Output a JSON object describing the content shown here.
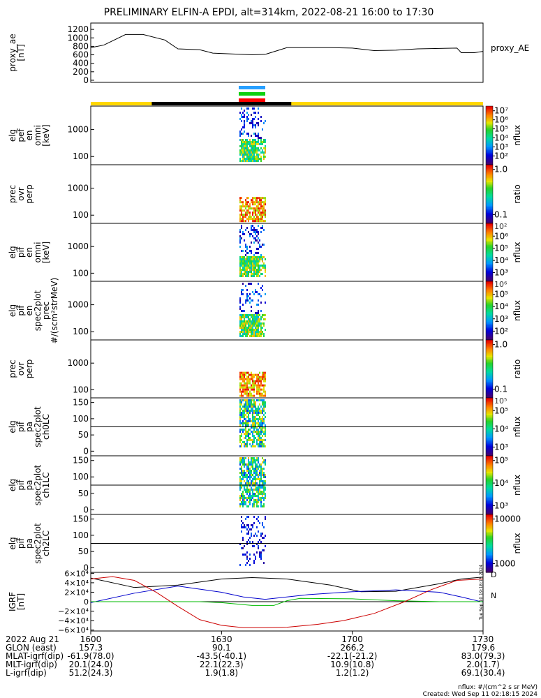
{
  "title": "PRELIMINARY ELFIN-A EPDI, alt=314km, 2022-08-21 16:00 to 17:30",
  "credit": {
    "units": "nflux: #/(cm^2 s sr MeV)",
    "created": "Created: Wed Sep 11 02:18:15 2024",
    "stamp": "Tue Sep 10 19:18:15 2024"
  },
  "orbit_bars": {
    "colors": [
      "#28a0ff",
      "#10d010",
      "#ff0000"
    ],
    "track_colors": {
      "day": "#ffd700",
      "night": "#000000"
    },
    "night_range_min": [
      14,
      46
    ]
  },
  "chart_data": [
    {
      "type": "line",
      "ylabel": "proxy_ae [nT]",
      "legend": "proxy_AE",
      "ylim": [
        -50,
        1350
      ],
      "yticks": [
        "1200",
        "1000",
        "800",
        "600",
        "400",
        "200",
        "0"
      ],
      "x_minutes": [
        0,
        3,
        8,
        12,
        17,
        20,
        25,
        28,
        37,
        40,
        45,
        52,
        55,
        60,
        65,
        70,
        75,
        80,
        84,
        85,
        88,
        90
      ],
      "values": [
        770,
        830,
        1080,
        1080,
        950,
        740,
        720,
        640,
        600,
        610,
        770,
        770,
        770,
        760,
        700,
        710,
        740,
        750,
        760,
        650,
        650,
        680
      ],
      "color": "#000000"
    },
    {
      "type": "heatmap",
      "ylabel": [
        "elg",
        "pef",
        "en",
        "omni",
        "[keV]"
      ],
      "yticks": [
        "1000",
        "100"
      ],
      "colorbar_label": "nflux",
      "colorbar_ticks": [
        "10⁷",
        "10⁶",
        "10⁵",
        "10⁴",
        "10³",
        "10²"
      ],
      "colorbar_partial": [],
      "kind": "energy"
    },
    {
      "type": "heatmap",
      "ylabel": [
        "prec",
        "ovr",
        "perp"
      ],
      "yticks": [
        "1000",
        "100"
      ],
      "colorbar_label": "ratio",
      "colorbar_ticks": [
        "1.0",
        "0.1"
      ],
      "colorbar_partial": [],
      "kind": "ratio"
    },
    {
      "type": "heatmap",
      "ylabel": [
        "elg",
        "pif",
        "en",
        "omni",
        "[keV]"
      ],
      "yticks": [
        "1000",
        "100"
      ],
      "colorbar_label": "nflux",
      "colorbar_ticks": [
        "10⁶",
        "10⁵",
        "10⁴",
        "10³"
      ],
      "colorbar_partial": [
        "10²"
      ],
      "kind": "energy"
    },
    {
      "type": "heatmap",
      "ylabel": [
        "elg",
        "pif",
        "en",
        "spec2plot",
        "prec",
        "#/(scm²strMeV)"
      ],
      "yticks": [
        "1000",
        "100"
      ],
      "colorbar_label": "nflux",
      "colorbar_ticks": [
        "10⁵",
        "10⁴",
        "10³",
        "10²"
      ],
      "colorbar_partial": [
        "10⁶"
      ],
      "kind": "energy"
    },
    {
      "type": "heatmap",
      "ylabel": [
        "prec",
        "ovr",
        "perp"
      ],
      "yticks": [
        "1000",
        "100"
      ],
      "colorbar_label": "ratio",
      "colorbar_ticks": [
        "1.0",
        "0.1"
      ],
      "colorbar_partial": [],
      "kind": "ratio"
    },
    {
      "type": "heatmap",
      "ylabel": [
        "elg",
        "pif",
        "pa",
        "spec2plot",
        "ch0LC"
      ],
      "yticks": [
        "150",
        "100",
        "50",
        "0"
      ],
      "colorbar_label": "nflux",
      "colorbar_ticks": [
        "10⁵",
        "10⁴",
        "10³"
      ],
      "colorbar_partial": [
        "10⁵"
      ],
      "kind": "pitch"
    },
    {
      "type": "heatmap",
      "ylabel": [
        "elg",
        "pif",
        "pa",
        "spec2plot",
        "ch1LC"
      ],
      "yticks": [
        "150",
        "100",
        "50",
        "0"
      ],
      "colorbar_label": "nflux",
      "colorbar_ticks": [
        "10⁵",
        "10⁴",
        "10³"
      ],
      "colorbar_partial": [],
      "kind": "pitch"
    },
    {
      "type": "heatmap",
      "ylabel": [
        "elg",
        "pif",
        "pa",
        "spec2plot",
        "ch2LC"
      ],
      "yticks": [
        "150",
        "100",
        "50",
        "0"
      ],
      "colorbar_label": "nflux",
      "colorbar_ticks": [
        "10000",
        "1000"
      ],
      "colorbar_partial": [],
      "kind": "sparse"
    },
    {
      "type": "line",
      "ylabel": "IGRF [nT]",
      "ylim": [
        -62000,
        62000
      ],
      "yticks": [
        "6×10⁴",
        "4×10⁴",
        "2×10⁴",
        "0",
        "−2×10⁴",
        "−4×10⁴",
        "−6×10⁴"
      ],
      "legend_letters": [
        {
          "label": "D",
          "color": "#dd0000"
        },
        {
          "label": "N",
          "color": "#00cc00"
        }
      ],
      "series": [
        {
          "color": "#000000",
          "x": [
            0,
            10,
            20,
            30,
            37,
            45,
            55,
            62,
            70,
            80,
            85,
            90
          ],
          "values": [
            50000,
            30000,
            35000,
            48000,
            51000,
            48000,
            35000,
            21000,
            22000,
            38000,
            48000,
            52000
          ]
        },
        {
          "color": "#0000cc",
          "x": [
            0,
            10,
            20,
            30,
            35,
            40,
            45,
            50,
            60,
            70,
            80,
            85,
            90
          ],
          "values": [
            -2000,
            18000,
            33000,
            20000,
            10000,
            5000,
            10000,
            15000,
            21000,
            25000,
            20000,
            10000,
            -1000
          ]
        },
        {
          "color": "#00bb00",
          "x": [
            0,
            25,
            30,
            37,
            42,
            45,
            48,
            60,
            70,
            80,
            90
          ],
          "values": [
            0,
            0,
            -2000,
            -8000,
            -8000,
            2000,
            7000,
            6000,
            2000,
            0,
            0
          ]
        },
        {
          "color": "#cc0000",
          "x": [
            0,
            5,
            10,
            15,
            20,
            25,
            30,
            35,
            40,
            45,
            52,
            58,
            65,
            72,
            78,
            84,
            90
          ],
          "values": [
            48000,
            53000,
            45000,
            20000,
            -10000,
            -38000,
            -50000,
            -55000,
            -55000,
            -54000,
            -48000,
            -40000,
            -25000,
            0,
            25000,
            45000,
            48000
          ]
        }
      ]
    }
  ],
  "time_axis": {
    "header": [
      "2022 Aug 21",
      "GLON (east)",
      "MLAT-igrf(dip)",
      "MLT-igrf(dip)",
      "L-igrf(dip)"
    ],
    "columns": [
      [
        "1600",
        "157.3",
        "-61.9(78.0)",
        "20.1(24.0)",
        "51.2(24.3)"
      ],
      [
        "1630",
        "90.1",
        "-43.5(-40.1)",
        "22.1(22.3)",
        "1.9(1.8)"
      ],
      [
        "1700",
        "266.2",
        "-22.1(-21.2)",
        "10.9(10.8)",
        "1.2(1.2)"
      ],
      [
        "1730",
        "179.6",
        "83.0(79.3)",
        "2.0(1.7)",
        "69.1(30.4)"
      ]
    ]
  }
}
